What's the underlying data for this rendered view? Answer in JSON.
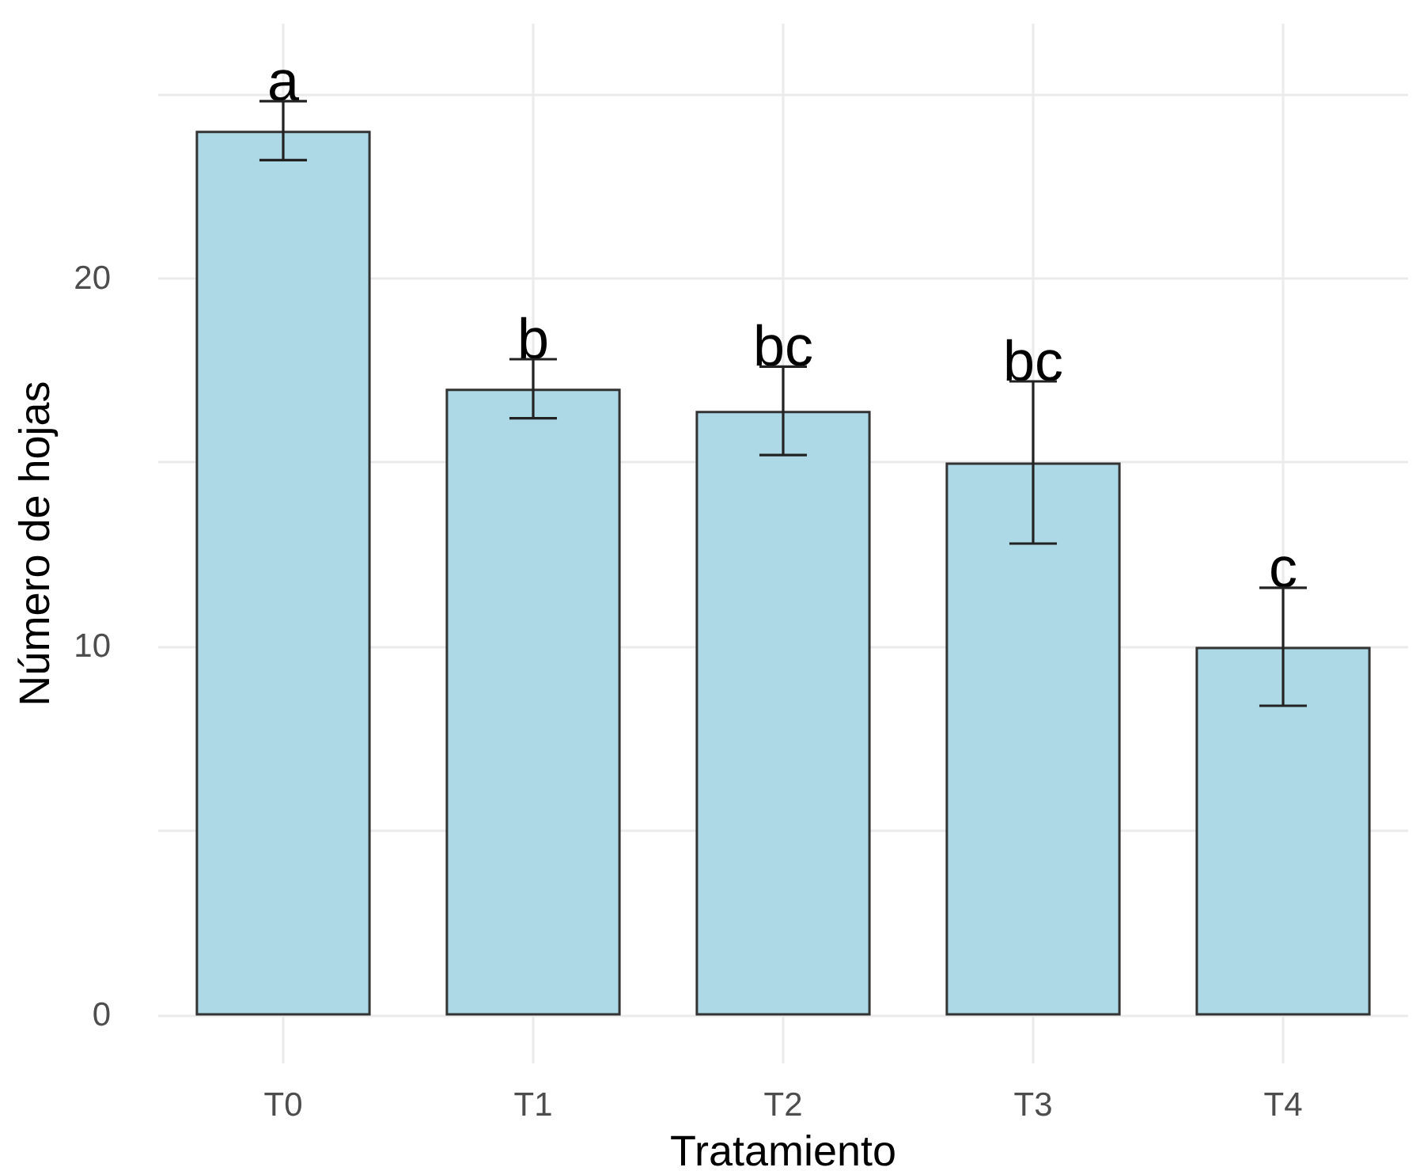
{
  "chart_data": {
    "type": "bar",
    "xlabel": "Tratamiento",
    "ylabel": "Número de hojas",
    "categories": [
      "T0",
      "T1",
      "T2",
      "T3",
      "T4"
    ],
    "values": [
      24,
      17,
      16.4,
      15,
      10
    ],
    "errors": [
      0.8,
      0.8,
      1.2,
      2.2,
      1.6
    ],
    "color": "#add8e6",
    "ylim": [
      -1.3,
      26.9
    ],
    "yticks": [
      0,
      {
        "value": 5,
        "label": null
      },
      10,
      {
        "value": 15,
        "label": null
      },
      20,
      {
        "value": 25,
        "label": null
      }
    ],
    "grid": true,
    "annotations": [
      {
        "text": "a",
        "x": "T0",
        "y": 24.8
      },
      {
        "text": "b",
        "x": "T1",
        "y": 17.8
      },
      {
        "text": "bc",
        "x": "T2",
        "y": 17.6
      },
      {
        "text": "bc",
        "x": "T3",
        "y": 17.2
      },
      {
        "text": "c",
        "x": "T4",
        "y": 11.6
      }
    ]
  }
}
